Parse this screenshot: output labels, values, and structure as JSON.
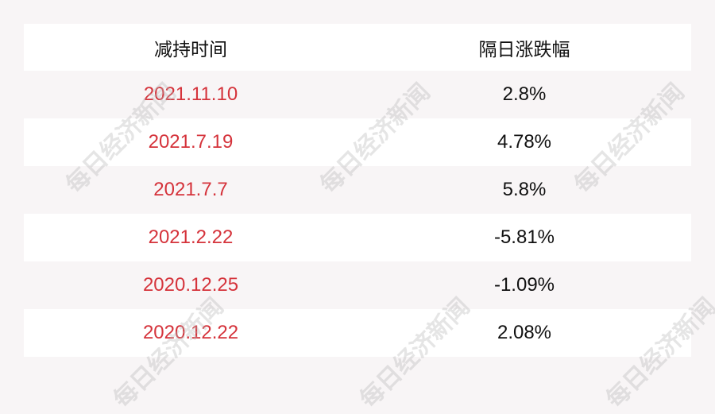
{
  "table": {
    "headers": [
      "减持时间",
      "隔日涨跌幅"
    ],
    "rows": [
      {
        "date": "2021.11.10",
        "change": "2.8%"
      },
      {
        "date": "2021.7.19",
        "change": "4.78%"
      },
      {
        "date": "2021.7.7",
        "change": "5.8%"
      },
      {
        "date": "2021.2.22",
        "change": "-5.81%"
      },
      {
        "date": "2020.12.25",
        "change": "-1.09%"
      },
      {
        "date": "2020.12.22",
        "change": "2.08%"
      }
    ]
  },
  "watermark": "每日经济新闻",
  "colors": {
    "date_text": "#d5333b",
    "background": "#f8f5f6"
  }
}
